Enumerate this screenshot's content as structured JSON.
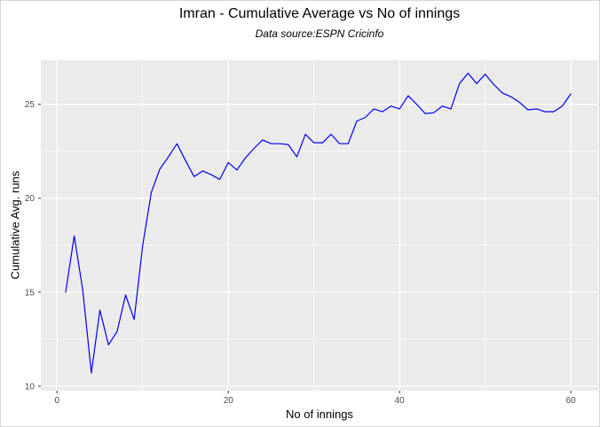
{
  "chart": {
    "title": "Imran - Cumulative Average vs No of innings",
    "subtitle": "Data source:ESPN Cricinfo",
    "xlabel": "No of innings",
    "ylabel": "Cumulative Avg. runs"
  },
  "chart_data": {
    "type": "line",
    "title": "Imran - Cumulative Average vs No of innings",
    "subtitle": "Data source:ESPN Cricinfo",
    "xlabel": "No of innings",
    "ylabel": "Cumulative Avg. runs",
    "legend": "none",
    "grid": true,
    "x": [
      1,
      2,
      3,
      4,
      5,
      6,
      7,
      8,
      9,
      10,
      11,
      12,
      13,
      14,
      15,
      16,
      17,
      18,
      19,
      20,
      21,
      22,
      23,
      24,
      25,
      26,
      27,
      28,
      29,
      30,
      31,
      32,
      33,
      34,
      35,
      36,
      37,
      38,
      39,
      40,
      41,
      42,
      43,
      44,
      45,
      46,
      47,
      48,
      49,
      50,
      51,
      52,
      53,
      54,
      55,
      56,
      57,
      58,
      59,
      60
    ],
    "y": [
      15.0,
      18.0,
      15.1,
      10.7,
      14.05,
      12.2,
      12.9,
      14.85,
      13.55,
      17.5,
      20.3,
      21.55,
      22.2,
      22.9,
      22.0,
      21.15,
      21.45,
      21.25,
      21.0,
      21.9,
      21.5,
      22.15,
      22.65,
      23.1,
      22.9,
      22.9,
      22.85,
      22.2,
      23.4,
      22.95,
      22.95,
      23.4,
      22.9,
      22.9,
      24.1,
      24.3,
      24.75,
      24.6,
      24.9,
      24.75,
      25.45,
      25.0,
      24.5,
      24.55,
      24.9,
      24.75,
      26.1,
      26.65,
      26.1,
      26.6,
      26.05,
      25.6,
      25.4,
      25.1,
      24.7,
      24.75,
      24.6,
      24.6,
      24.9,
      25.55
    ],
    "xlim": [
      -1.9,
      63.2
    ],
    "ylim": [
      9.76,
      27.34
    ],
    "xticks": [
      0,
      20,
      40,
      60
    ],
    "xticks_minor": [
      10,
      30,
      50
    ],
    "yticks": [
      10,
      15,
      20,
      25
    ],
    "yticks_minor": [
      12.5,
      17.5,
      22.5
    ],
    "colors": {
      "line": "#0000EE",
      "panel_bg": "#EBEBEB",
      "grid": "#FFFFFF",
      "tick_label": "#4D4D4D",
      "tick_mark": "#333333"
    }
  }
}
